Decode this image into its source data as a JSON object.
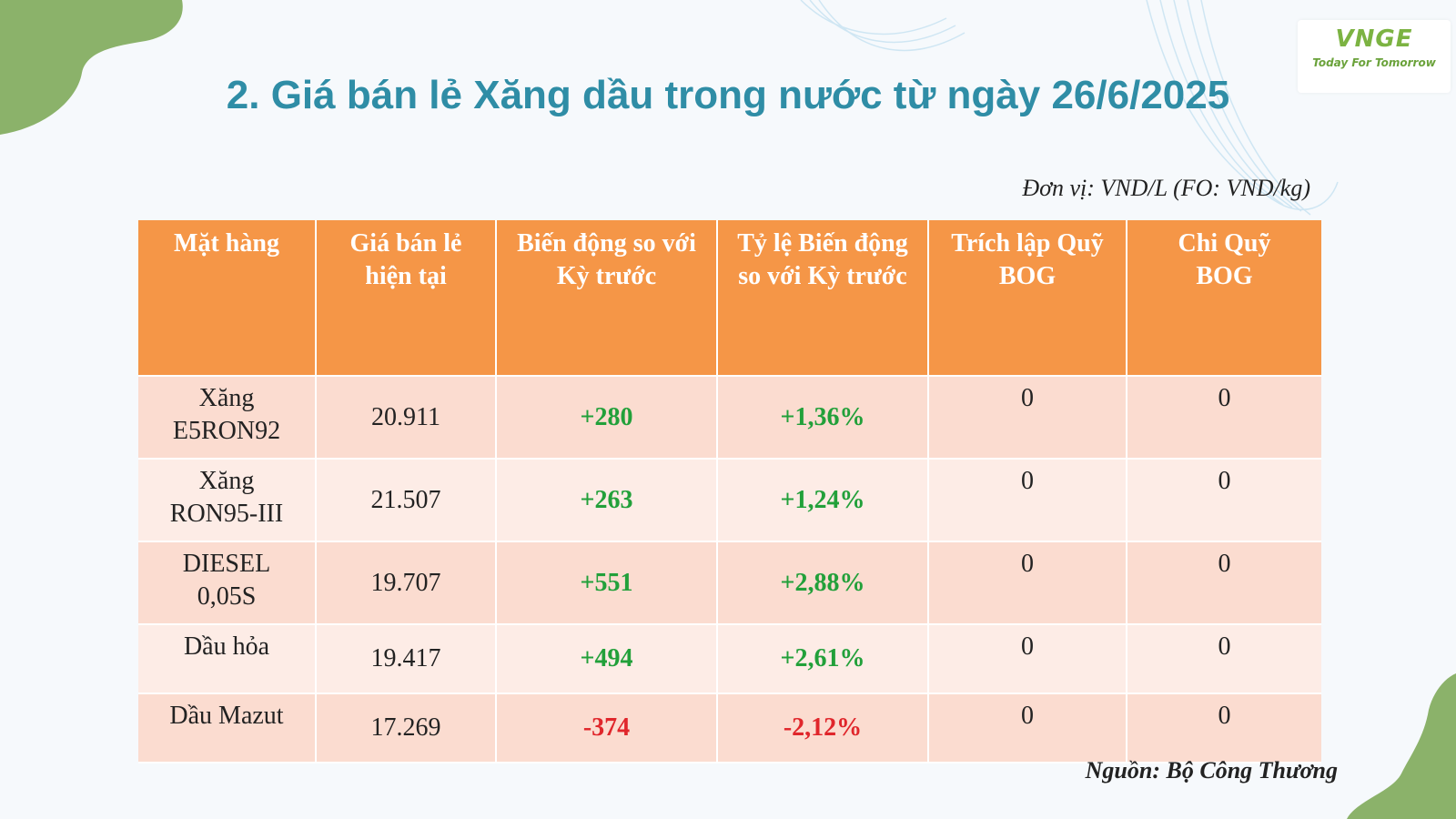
{
  "logo": {
    "brand": "VNGE",
    "slogan": "Today For Tomorrow"
  },
  "title": "2. Giá bán lẻ Xăng dầu trong nước từ ngày 26/6/2025",
  "unit_note": "Đơn vị: VND/L (FO: VND/kg)",
  "table": {
    "headers": [
      [
        "Mặt hàng",
        ""
      ],
      [
        "Giá bán lẻ",
        "hiện tại"
      ],
      [
        "Biến động so với",
        "Kỳ trước"
      ],
      [
        "Tỷ lệ Biến động",
        "so với Kỳ trước"
      ],
      [
        "Trích lập Quỹ",
        "BOG"
      ],
      [
        "Chi Quỹ",
        "BOG"
      ]
    ],
    "rows": [
      {
        "item": [
          "Xăng",
          "E5RON92"
        ],
        "price": "20.911",
        "change": "+280",
        "rate": "+1,36%",
        "bog_in": "0",
        "bog_out": "0",
        "direction": "up"
      },
      {
        "item": [
          "Xăng",
          "RON95-III"
        ],
        "price": "21.507",
        "change": "+263",
        "rate": "+1,24%",
        "bog_in": "0",
        "bog_out": "0",
        "direction": "up"
      },
      {
        "item": [
          "DIESEL",
          "0,05S"
        ],
        "price": "19.707",
        "change": "+551",
        "rate": "+2,88%",
        "bog_in": "0",
        "bog_out": "0",
        "direction": "up"
      },
      {
        "item": [
          "Dầu hỏa",
          ""
        ],
        "price": "19.417",
        "change": "+494",
        "rate": "+2,61%",
        "bog_in": "0",
        "bog_out": "0",
        "direction": "up"
      },
      {
        "item": [
          "Dầu Mazut",
          ""
        ],
        "price": "17.269",
        "change": "-374",
        "rate": "-2,12%",
        "bog_in": "0",
        "bog_out": "0",
        "direction": "down"
      }
    ]
  },
  "source_note": "Nguồn: Bộ Công Thương",
  "colors": {
    "title": "#2f8da6",
    "header_bg": "#f59647",
    "row_odd": "#fbdcd0",
    "row_even": "#fdece6",
    "up": "#22a03a",
    "down": "#e0262b",
    "accent_green": "#8bb26a"
  }
}
